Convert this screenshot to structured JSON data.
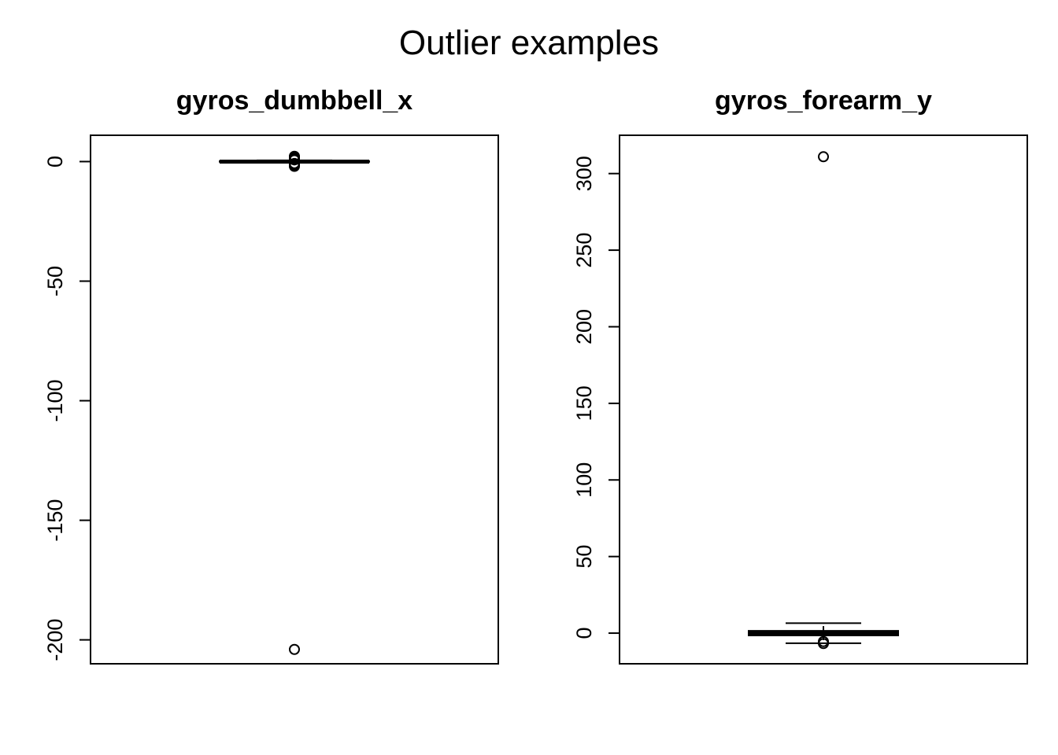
{
  "figure": {
    "title": "Outlier examples"
  },
  "chart_data": [
    {
      "type": "boxplot",
      "title": "gyros_dumbbell_x",
      "xlabel": "",
      "ylabel": "",
      "ylim": [
        -210,
        11
      ],
      "yticks": [
        0,
        -50,
        -100,
        -150,
        -200
      ],
      "ytick_labels": [
        "0",
        "-50",
        "-100",
        "-150",
        "-200"
      ],
      "box": {
        "whisker_low": -0.4,
        "q1": -0.1,
        "median": 0.0,
        "q3": 0.15,
        "whisker_high": 0.5
      },
      "outliers": [
        2.2,
        1.8,
        1.4,
        1.0,
        0.7,
        -0.8,
        -1.2,
        -1.6,
        -2.0,
        -204
      ]
    },
    {
      "type": "boxplot",
      "title": "gyros_forearm_y",
      "xlabel": "",
      "ylabel": "",
      "ylim": [
        -20,
        325
      ],
      "yticks": [
        0,
        50,
        100,
        150,
        200,
        250,
        300
      ],
      "ytick_labels": [
        "0",
        "50",
        "100",
        "150",
        "200",
        "250",
        "300"
      ],
      "box": {
        "whisker_low": -6.6,
        "q1": -1.5,
        "median": 0.0,
        "q3": 1.5,
        "whisker_high": 6.5
      },
      "outliers": [
        311,
        -6.8,
        -5.5
      ]
    }
  ]
}
